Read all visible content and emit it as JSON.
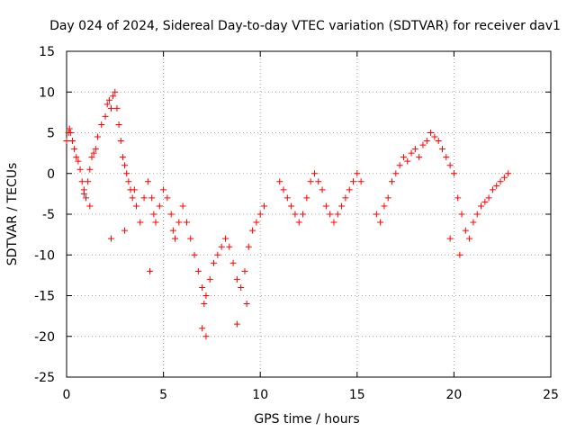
{
  "chart_data": {
    "type": "scatter",
    "title": "Day 024 of 2024, Sidereal Day-to-day VTEC variation (SDTVAR) for receiver dav1",
    "xlabel": "GPS time / hours",
    "ylabel": "SDTVAR / TECUs",
    "xlim": [
      0,
      25
    ],
    "ylim": [
      -25,
      15
    ],
    "xticks": [
      "0",
      "5",
      "10",
      "15",
      "20",
      "25"
    ],
    "yticks": [
      "15",
      "10",
      "5",
      "0",
      "-5",
      "-10",
      "-15",
      "-20",
      "-25"
    ],
    "grid": true,
    "marker": "+",
    "series_color": "#ff0000",
    "series": [
      {
        "name": "SDTVAR dav1",
        "x": [
          0.0,
          0.1,
          0.15,
          0.2,
          0.3,
          0.4,
          0.5,
          0.6,
          0.7,
          0.8,
          0.9,
          1.0,
          1.1,
          1.2,
          1.3,
          1.4,
          1.5,
          1.6,
          1.8,
          2.0,
          2.1,
          2.2,
          2.3,
          2.4,
          2.5,
          2.6,
          2.7,
          2.8,
          2.9,
          3.0,
          3.1,
          3.2,
          3.3,
          3.4,
          3.5,
          3.6,
          3.8,
          4.0,
          4.2,
          4.4,
          4.5,
          4.6,
          4.8,
          5.0,
          5.2,
          5.4,
          5.5,
          5.6,
          5.8,
          6.0,
          6.2,
          6.4,
          6.6,
          6.8,
          7.0,
          7.1,
          7.2,
          7.4,
          7.6,
          7.8,
          8.0,
          8.2,
          8.4,
          8.6,
          8.8,
          9.0,
          9.2,
          9.4,
          9.6,
          9.8,
          10.0,
          10.2,
          11.0,
          11.2,
          11.4,
          11.6,
          11.8,
          12.0,
          12.2,
          12.4,
          12.6,
          12.8,
          13.0,
          13.2,
          13.4,
          13.6,
          13.8,
          14.0,
          14.2,
          14.4,
          14.6,
          14.8,
          15.0,
          15.2,
          16.0,
          16.2,
          16.4,
          16.6,
          16.8,
          17.0,
          17.2,
          17.4,
          17.6,
          17.8,
          18.0,
          18.2,
          18.4,
          18.6,
          18.8,
          19.0,
          19.2,
          19.4,
          19.6,
          19.8,
          20.0,
          20.2,
          20.4,
          20.6,
          20.8,
          21.0,
          21.2,
          21.4,
          21.6,
          21.8,
          22.0,
          22.2,
          22.4,
          22.6,
          22.8,
          0.9,
          1.2,
          2.3,
          3.0,
          4.3,
          7.0,
          7.2,
          8.8,
          9.3,
          19.8,
          20.3
        ],
        "y": [
          4.0,
          5.0,
          5.5,
          5.0,
          4.0,
          3.0,
          2.0,
          1.5,
          0.5,
          -1.0,
          -2.0,
          -3.0,
          -1.0,
          0.5,
          2.0,
          2.5,
          3.0,
          4.5,
          6.0,
          7.0,
          8.5,
          9.0,
          8.0,
          9.5,
          10.0,
          8.0,
          6.0,
          4.0,
          2.0,
          1.0,
          0.0,
          -1.0,
          -2.0,
          -3.0,
          -2.0,
          -4.0,
          -6.0,
          -3.0,
          -1.0,
          -3.0,
          -5.0,
          -6.0,
          -4.0,
          -2.0,
          -3.0,
          -5.0,
          -7.0,
          -8.0,
          -6.0,
          -4.0,
          -6.0,
          -8.0,
          -10.0,
          -12.0,
          -14.0,
          -16.0,
          -15.0,
          -13.0,
          -11.0,
          -10.0,
          -9.0,
          -8.0,
          -9.0,
          -11.0,
          -13.0,
          -14.0,
          -12.0,
          -9.0,
          -7.0,
          -6.0,
          -5.0,
          -4.0,
          -1.0,
          -2.0,
          -3.0,
          -4.0,
          -5.0,
          -6.0,
          -5.0,
          -3.0,
          -1.0,
          0.0,
          -1.0,
          -2.0,
          -4.0,
          -5.0,
          -6.0,
          -5.0,
          -4.0,
          -3.0,
          -2.0,
          -1.0,
          0.0,
          -1.0,
          -5.0,
          -6.0,
          -4.0,
          -3.0,
          -1.0,
          0.0,
          1.0,
          2.0,
          1.5,
          2.5,
          3.0,
          2.0,
          3.5,
          4.0,
          5.0,
          4.5,
          4.0,
          3.0,
          2.0,
          1.0,
          0.0,
          -3.0,
          -5.0,
          -7.0,
          -8.0,
          -6.0,
          -5.0,
          -4.0,
          -3.5,
          -3.0,
          -2.0,
          -1.5,
          -1.0,
          -0.5,
          0.0,
          -2.5,
          -4.0,
          -8.0,
          -7.0,
          -12.0,
          -19.0,
          -20.0,
          -18.5,
          -16.0,
          -8.0,
          -10.0
        ]
      }
    ]
  }
}
